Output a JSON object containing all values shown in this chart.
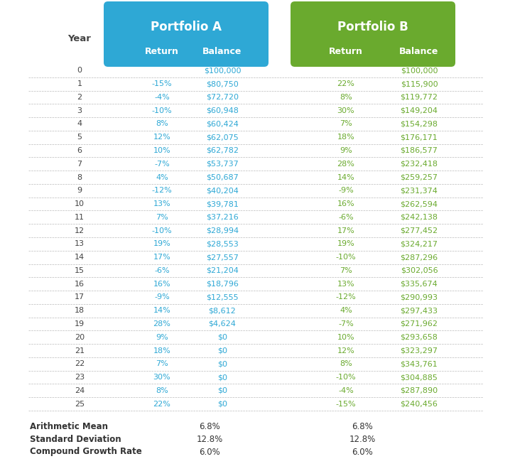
{
  "portfolio_a_color": "#2EA8D5",
  "portfolio_b_color": "#6AAA2E",
  "text_color_a": "#2EA8D5",
  "text_color_b": "#6AAA2E",
  "year_color": "#444444",
  "stats_color": "#333333",
  "bg_color": "#FFFFFF",
  "row_line_color": "#BBBBBB",
  "years": [
    0,
    1,
    2,
    3,
    4,
    5,
    6,
    7,
    8,
    9,
    10,
    11,
    12,
    13,
    14,
    15,
    16,
    17,
    18,
    19,
    20,
    21,
    22,
    23,
    24,
    25
  ],
  "portfolio_a_return": [
    "",
    "-15%",
    "-4%",
    "-10%",
    "8%",
    "12%",
    "10%",
    "-7%",
    "4%",
    "-12%",
    "13%",
    "7%",
    "-10%",
    "19%",
    "17%",
    "-6%",
    "16%",
    "-9%",
    "14%",
    "28%",
    "9%",
    "18%",
    "7%",
    "30%",
    "8%",
    "22%"
  ],
  "portfolio_a_balance": [
    "$100,000",
    "$80,750",
    "$72,720",
    "$60,948",
    "$60,424",
    "$62,075",
    "$62,782",
    "$53,737",
    "$50,687",
    "$40,204",
    "$39,781",
    "$37,216",
    "$28,994",
    "$28,553",
    "$27,557",
    "$21,204",
    "$18,796",
    "$12,555",
    "$8,612",
    "$4,624",
    "$0",
    "$0",
    "$0",
    "$0",
    "$0",
    "$0"
  ],
  "portfolio_b_return": [
    "",
    "22%",
    "8%",
    "30%",
    "7%",
    "18%",
    "9%",
    "28%",
    "14%",
    "-9%",
    "16%",
    "-6%",
    "17%",
    "19%",
    "-10%",
    "7%",
    "13%",
    "-12%",
    "4%",
    "-7%",
    "10%",
    "12%",
    "8%",
    "-10%",
    "-4%",
    "-15%"
  ],
  "portfolio_b_balance": [
    "$100,000",
    "$115,900",
    "$119,772",
    "$149,204",
    "$154,298",
    "$176,171",
    "$186,577",
    "$232,418",
    "$259,257",
    "$231,374",
    "$262,594",
    "$242,138",
    "$277,452",
    "$324,217",
    "$287,296",
    "$302,056",
    "$335,674",
    "$290,993",
    "$297,433",
    "$271,962",
    "$293,658",
    "$323,297",
    "$343,761",
    "$304,885",
    "$287,890",
    "$240,456"
  ],
  "stats": [
    {
      "label": "Arithmetic Mean",
      "a_val": "6.8%",
      "b_val": "6.8%"
    },
    {
      "label": "Standard Deviation",
      "a_val": "12.8%",
      "b_val": "12.8%"
    },
    {
      "label": "Compound Growth Rate",
      "a_val": "6.0%",
      "b_val": "6.0%"
    }
  ],
  "font_size_data": 8.0,
  "font_size_header_title": 12,
  "font_size_header_sub": 9,
  "font_size_year_label": 9.5,
  "font_size_stats_label": 8.5,
  "font_size_stats_val": 8.5
}
